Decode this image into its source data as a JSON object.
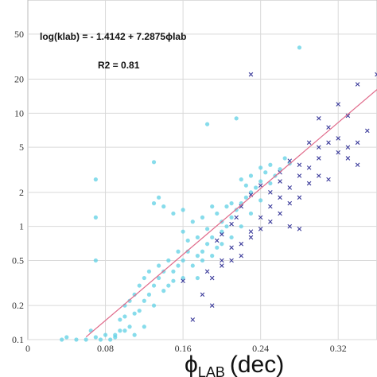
{
  "chart_data": {
    "type": "scatter",
    "xlabel_main": "ϕ",
    "xlabel_sub": "LAB",
    "xlabel_unit": "(dec)",
    "xlim": [
      0,
      0.36
    ],
    "ylim": [
      0.1,
      100
    ],
    "y_scale": "log",
    "grid": true,
    "x_tick_labels": [
      "0",
      "0.08",
      "0.16",
      "0.24",
      "0.32"
    ],
    "x_ticks": [
      0,
      0.08,
      0.16,
      0.24,
      0.32
    ],
    "y_tick_labels": [
      "0.1",
      "0.2",
      "0.5",
      "1",
      "2",
      "5",
      "10",
      "20",
      "50"
    ],
    "y_ticks": [
      0.1,
      0.2,
      0.5,
      1,
      2,
      5,
      10,
      20,
      50
    ],
    "annotations": {
      "equation": "log(klab) = - 1.4142 + 7.2875ϕlab",
      "r2": "R2 = 0.81"
    },
    "fit_line": {
      "intercept": -1.4142,
      "slope": 7.2875,
      "x_range": [
        0.06,
        0.36
      ],
      "color": "#e06a8a"
    },
    "series": [
      {
        "marker": "dot",
        "color": "#5fd0e4",
        "points": [
          [
            0.035,
            0.1
          ],
          [
            0.04,
            0.105
          ],
          [
            0.05,
            0.1
          ],
          [
            0.06,
            0.1
          ],
          [
            0.065,
            0.12
          ],
          [
            0.07,
            0.105
          ],
          [
            0.075,
            0.1
          ],
          [
            0.08,
            0.11
          ],
          [
            0.085,
            0.1
          ],
          [
            0.09,
            0.105
          ],
          [
            0.07,
            1.2
          ],
          [
            0.07,
            2.6
          ],
          [
            0.07,
            0.5
          ],
          [
            0.09,
            0.11
          ],
          [
            0.1,
            0.12
          ],
          [
            0.1,
            0.2
          ],
          [
            0.095,
            0.15
          ],
          [
            0.105,
            0.13
          ],
          [
            0.11,
            0.17
          ],
          [
            0.11,
            0.11
          ],
          [
            0.115,
            0.18
          ],
          [
            0.12,
            0.22
          ],
          [
            0.12,
            0.13
          ],
          [
            0.125,
            0.25
          ],
          [
            0.13,
            0.3
          ],
          [
            0.13,
            0.2
          ],
          [
            0.135,
            0.35
          ],
          [
            0.14,
            0.27
          ],
          [
            0.14,
            0.4
          ],
          [
            0.145,
            0.3
          ],
          [
            0.15,
            0.4
          ],
          [
            0.15,
            0.33
          ],
          [
            0.155,
            0.45
          ],
          [
            0.16,
            0.35
          ],
          [
            0.16,
            0.5
          ],
          [
            0.165,
            0.6
          ],
          [
            0.17,
            0.45
          ],
          [
            0.175,
            0.55
          ],
          [
            0.175,
            0.35
          ],
          [
            0.18,
            0.6
          ],
          [
            0.18,
            0.5
          ],
          [
            0.185,
            0.7
          ],
          [
            0.19,
            0.55
          ],
          [
            0.19,
            0.8
          ],
          [
            0.195,
            0.65
          ],
          [
            0.2,
            0.9
          ],
          [
            0.2,
            0.7
          ],
          [
            0.205,
            1.0
          ],
          [
            0.21,
            0.8
          ],
          [
            0.21,
            1.2
          ],
          [
            0.215,
            1.4
          ],
          [
            0.22,
            1.0
          ],
          [
            0.22,
            1.6
          ],
          [
            0.225,
            1.8
          ],
          [
            0.23,
            1.3
          ],
          [
            0.23,
            2.0
          ],
          [
            0.235,
            2.2
          ],
          [
            0.24,
            1.7
          ],
          [
            0.24,
            2.5
          ],
          [
            0.245,
            3.0
          ],
          [
            0.25,
            2.4
          ],
          [
            0.25,
            3.5
          ],
          [
            0.255,
            2.8
          ],
          [
            0.26,
            3.2
          ],
          [
            0.265,
            4.0
          ],
          [
            0.27,
            3.6
          ],
          [
            0.28,
            38
          ],
          [
            0.13,
            3.7
          ],
          [
            0.13,
            1.6
          ],
          [
            0.135,
            1.8
          ],
          [
            0.14,
            1.5
          ],
          [
            0.15,
            1.3
          ],
          [
            0.16,
            1.4
          ],
          [
            0.17,
            1.1
          ],
          [
            0.18,
            1.2
          ],
          [
            0.19,
            1.5
          ],
          [
            0.2,
            1.1
          ],
          [
            0.21,
            1.6
          ],
          [
            0.22,
            2.6
          ],
          [
            0.23,
            2.8
          ],
          [
            0.24,
            3.3
          ],
          [
            0.185,
            8.0
          ],
          [
            0.215,
            9.0
          ],
          [
            0.16,
            0.9
          ],
          [
            0.175,
            0.8
          ],
          [
            0.155,
            0.6
          ],
          [
            0.145,
            0.5
          ],
          [
            0.135,
            0.45
          ],
          [
            0.125,
            0.4
          ],
          [
            0.12,
            0.35
          ],
          [
            0.115,
            0.3
          ],
          [
            0.11,
            0.25
          ],
          [
            0.105,
            0.22
          ],
          [
            0.1,
            0.16
          ],
          [
            0.095,
            0.12
          ],
          [
            0.165,
            0.75
          ],
          [
            0.185,
            0.95
          ],
          [
            0.195,
            1.3
          ],
          [
            0.205,
            1.5
          ],
          [
            0.225,
            2.3
          ]
        ]
      },
      {
        "marker": "x",
        "color": "#3a3a9a",
        "points": [
          [
            0.16,
            0.33
          ],
          [
            0.17,
            0.15
          ],
          [
            0.18,
            0.25
          ],
          [
            0.19,
            0.35
          ],
          [
            0.2,
            0.45
          ],
          [
            0.21,
            0.5
          ],
          [
            0.22,
            0.7
          ],
          [
            0.23,
            0.9
          ],
          [
            0.24,
            1.2
          ],
          [
            0.25,
            1.5
          ],
          [
            0.26,
            1.8
          ],
          [
            0.27,
            2.2
          ],
          [
            0.28,
            2.8
          ],
          [
            0.29,
            3.3
          ],
          [
            0.3,
            4.0
          ],
          [
            0.3,
            5.0
          ],
          [
            0.31,
            5.5
          ],
          [
            0.32,
            6.0
          ],
          [
            0.32,
            4.5
          ],
          [
            0.33,
            5.0
          ],
          [
            0.33,
            4.0
          ],
          [
            0.34,
            3.5
          ],
          [
            0.25,
            2.0
          ],
          [
            0.26,
            2.5
          ],
          [
            0.27,
            1.6
          ],
          [
            0.28,
            1.8
          ],
          [
            0.29,
            2.4
          ],
          [
            0.3,
            2.8
          ],
          [
            0.31,
            2.6
          ],
          [
            0.26,
            1.3
          ],
          [
            0.27,
            1.0
          ],
          [
            0.28,
            0.95
          ],
          [
            0.25,
            1.1
          ],
          [
            0.24,
            0.95
          ],
          [
            0.23,
            0.8
          ],
          [
            0.22,
            0.55
          ],
          [
            0.21,
            0.65
          ],
          [
            0.2,
            0.5
          ],
          [
            0.19,
            0.2
          ],
          [
            0.185,
            0.4
          ],
          [
            0.23,
            22
          ],
          [
            0.36,
            22
          ],
          [
            0.34,
            18
          ],
          [
            0.32,
            12
          ],
          [
            0.3,
            9.0
          ],
          [
            0.33,
            9.5
          ],
          [
            0.35,
            7.0
          ],
          [
            0.29,
            5.5
          ],
          [
            0.27,
            3.8
          ],
          [
            0.26,
            3.0
          ],
          [
            0.24,
            2.3
          ],
          [
            0.23,
            1.9
          ],
          [
            0.22,
            1.5
          ],
          [
            0.215,
            1.2
          ],
          [
            0.2,
            0.85
          ],
          [
            0.195,
            0.75
          ],
          [
            0.21,
            1.05
          ],
          [
            0.28,
            3.5
          ],
          [
            0.31,
            7.5
          ],
          [
            0.34,
            5.5
          ]
        ]
      }
    ]
  }
}
